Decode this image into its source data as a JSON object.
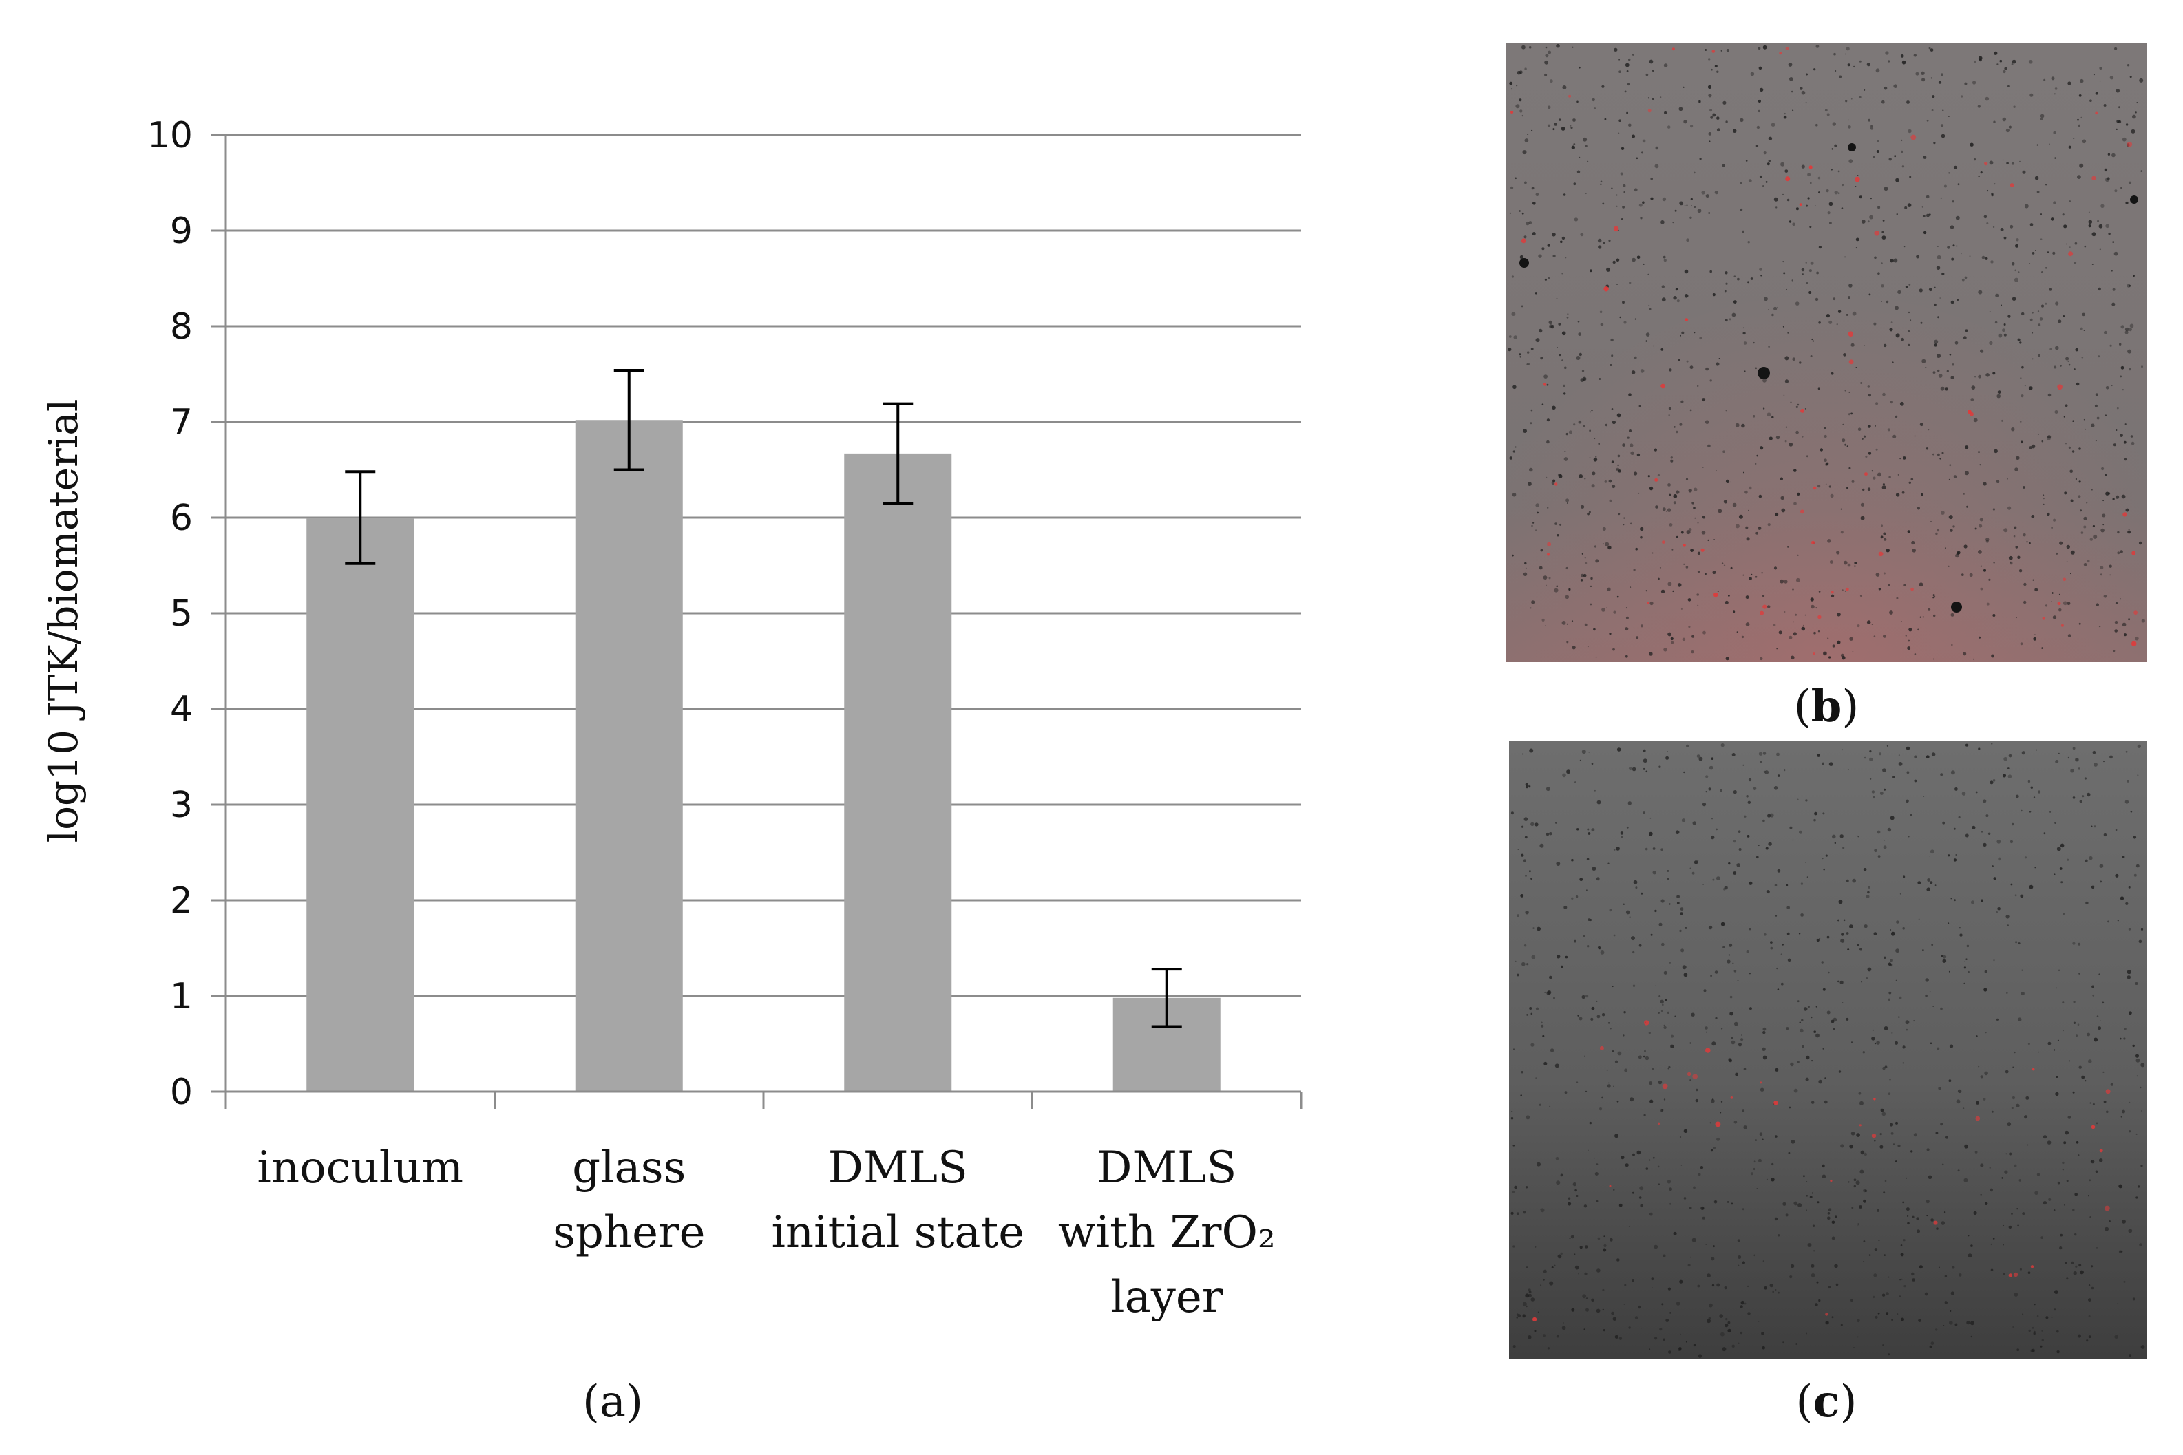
{
  "chart_data": {
    "type": "bar",
    "categories": [
      [
        "inoculum"
      ],
      [
        "glass",
        "sphere"
      ],
      [
        "DMLS",
        "initial state"
      ],
      [
        "DMLS",
        "with ZrO₂",
        "layer"
      ]
    ],
    "values": [
      6.0,
      7.02,
      6.67,
      0.98
    ],
    "errors": [
      0.48,
      0.52,
      0.52,
      0.3
    ],
    "ylabel": "log10 JTK/biomaterial",
    "ylim": [
      0,
      10
    ],
    "yticks": [
      "0",
      "1",
      "2",
      "3",
      "4",
      "5",
      "6",
      "7",
      "8",
      "9",
      "10"
    ],
    "grid": true,
    "bar_color": "#a6a6a6",
    "grid_color": "#8c8c8c",
    "error_color": "#000000"
  },
  "panels": {
    "a": {
      "open": "(",
      "letter": "a",
      "close": ")"
    },
    "b": {
      "open": "(",
      "letter": "b",
      "close": ")"
    },
    "c": {
      "open": "(",
      "letter": "c",
      "close": ")"
    }
  },
  "micrographs": {
    "b": {
      "base_color": "#7b7474",
      "speck_color": "#e03a3a"
    },
    "c": {
      "base_color": "#616161",
      "speck_color": "#e03a3a"
    }
  }
}
